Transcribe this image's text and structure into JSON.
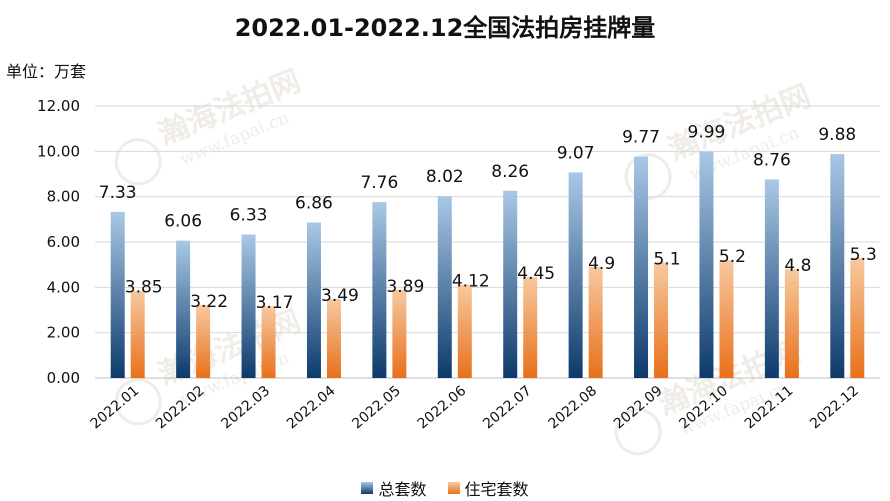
{
  "chart_data": {
    "type": "bar",
    "title": "2022.01-2022.12全国法拍房挂牌量",
    "unit_label": "单位：万套",
    "categories": [
      "2022.01",
      "2022.02",
      "2022.03",
      "2022.04",
      "2022.05",
      "2022.06",
      "2022.07",
      "2022.08",
      "2022.09",
      "2022.10",
      "2022.11",
      "2022.12"
    ],
    "series": [
      {
        "name": "总套数",
        "values": [
          7.33,
          6.06,
          6.33,
          6.86,
          7.76,
          8.02,
          8.26,
          9.07,
          9.77,
          9.99,
          8.76,
          9.88
        ],
        "labels": [
          "7.33",
          "6.06",
          "6.33",
          "6.86",
          "7.76",
          "8.02",
          "8.26",
          "9.07",
          "9.77",
          "9.99",
          "8.76",
          "9.88"
        ],
        "color_top": "#a9c8e6",
        "color_bottom": "#0d3a6b"
      },
      {
        "name": "住宅套数",
        "values": [
          3.85,
          3.22,
          3.17,
          3.49,
          3.89,
          4.12,
          4.45,
          4.9,
          5.1,
          5.2,
          4.8,
          5.3
        ],
        "labels": [
          "3.85",
          "3.22",
          "3.17",
          "3.49",
          "3.89",
          "4.12",
          "4.45",
          "4.9",
          "5.1",
          "5.2",
          "4.8",
          "5.3"
        ],
        "color_top": "#f7c9a0",
        "color_bottom": "#e8701a"
      }
    ],
    "ylim": [
      0,
      12
    ],
    "yticks": [
      "0.00",
      "2.00",
      "4.00",
      "6.00",
      "8.00",
      "10.00",
      "12.00"
    ],
    "grid": true,
    "legend_position": "bottom-center",
    "watermark": "瀚海法拍网 www.fapai.cn"
  }
}
